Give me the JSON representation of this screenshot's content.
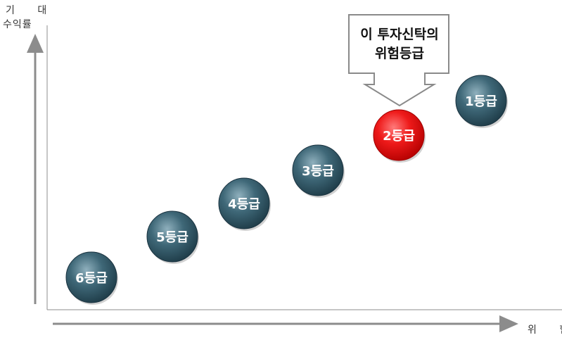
{
  "axes": {
    "y_label_line1": "기 대",
    "y_label_line2": "수익률",
    "x_label": "위 험"
  },
  "callout": {
    "line1": "이 투자신탁의",
    "line2": "위험등급"
  },
  "grades": [
    {
      "label": "6등급",
      "highlighted": false
    },
    {
      "label": "5등급",
      "highlighted": false
    },
    {
      "label": "4등급",
      "highlighted": false
    },
    {
      "label": "3등급",
      "highlighted": false
    },
    {
      "label": "2등급",
      "highlighted": true
    },
    {
      "label": "1등급",
      "highlighted": false
    }
  ],
  "colors": {
    "normal_circle": "#2e5564",
    "highlight_circle": "#e8101a",
    "axis": "#8c8c8c",
    "circle_text": "#ffffff"
  }
}
